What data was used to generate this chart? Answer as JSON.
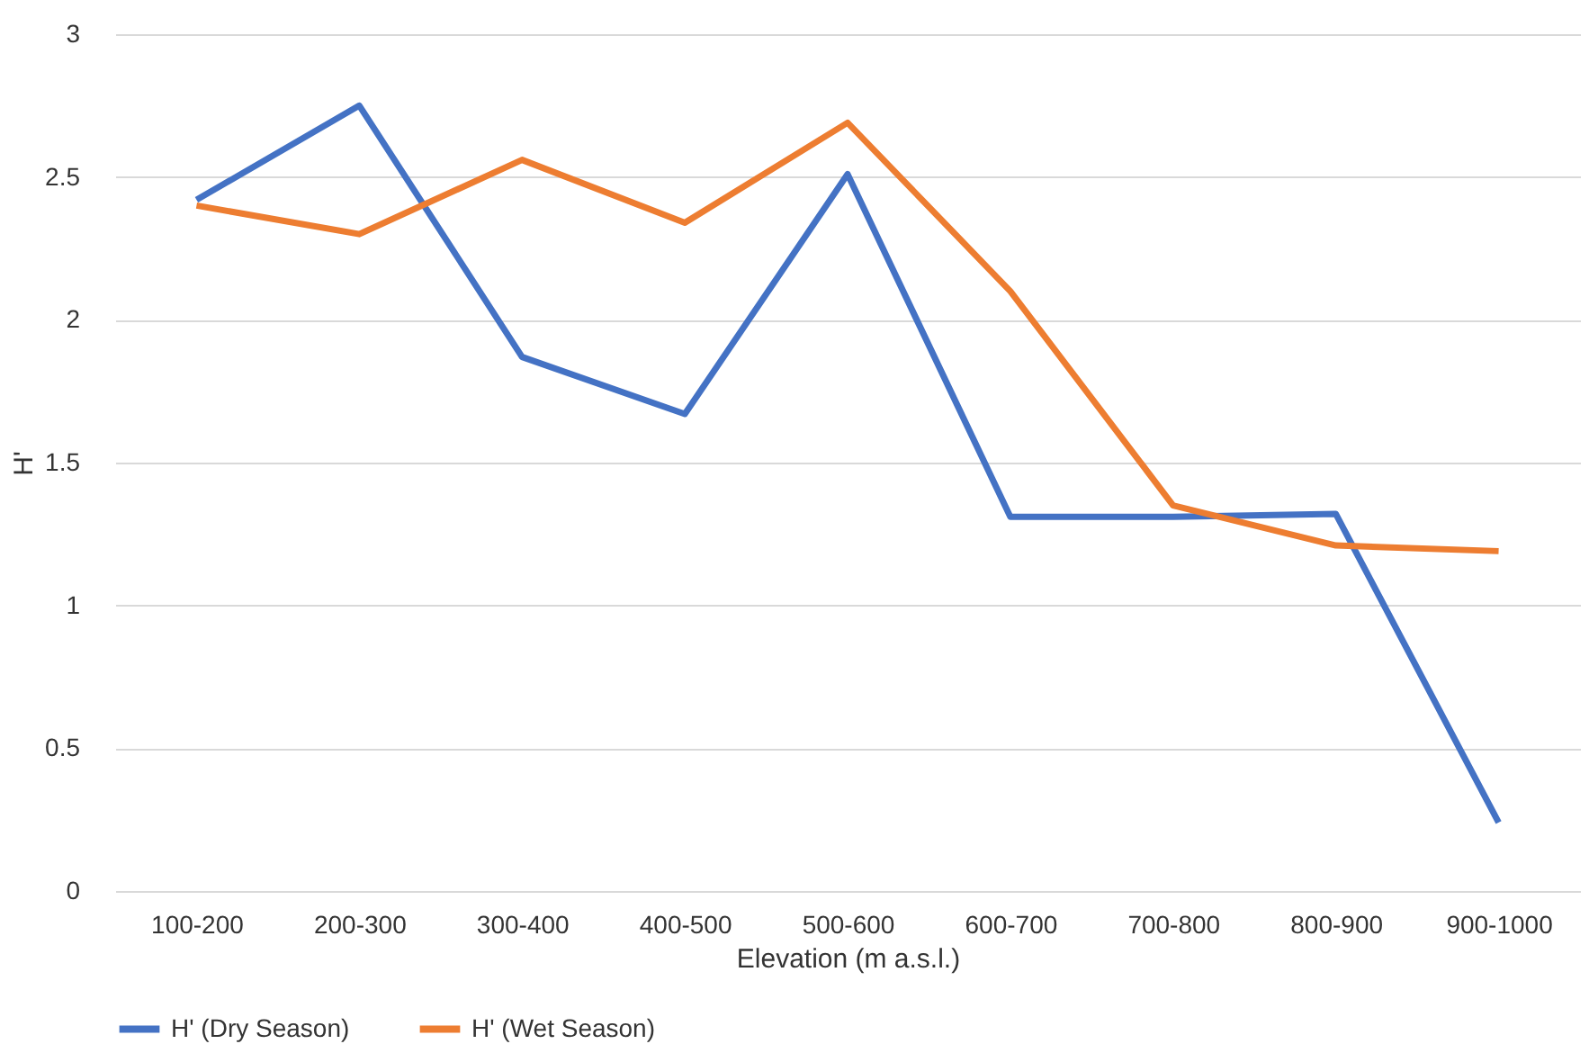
{
  "chart_data": {
    "type": "line",
    "xlabel": "Elevation (m a.s.l.)",
    "ylabel": "H'",
    "categories": [
      "100-200",
      "200-300",
      "300-400",
      "400-500",
      "500-600",
      "600-700",
      "700-800",
      "800-900",
      "900-1000"
    ],
    "series": [
      {
        "name": "H' (Dry Season)",
        "color": "#4472c4",
        "values": [
          2.42,
          2.75,
          1.87,
          1.67,
          2.51,
          1.31,
          1.31,
          1.32,
          0.24
        ]
      },
      {
        "name": "H' (Wet Season)",
        "color": "#ed7d31",
        "values": [
          2.4,
          2.3,
          2.56,
          2.34,
          2.69,
          2.1,
          1.35,
          1.21,
          1.19
        ]
      }
    ],
    "ylim": [
      0,
      3
    ],
    "yticks": [
      0,
      0.5,
      1,
      1.5,
      2,
      2.5,
      3
    ],
    "grid": "y",
    "legend": "bottom",
    "marker": "none",
    "line_style": "solid"
  }
}
